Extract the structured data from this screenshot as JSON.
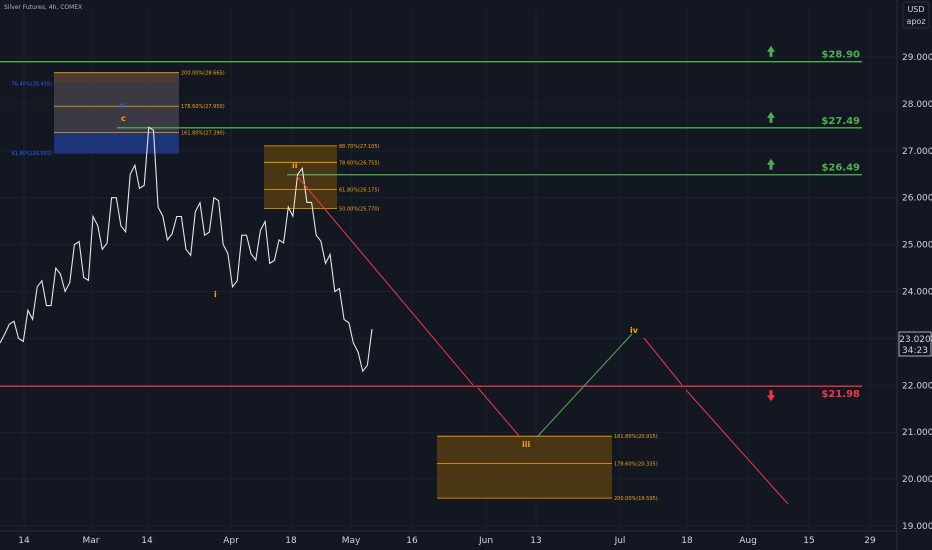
{
  "header": {
    "title": "Silver Futures, 4h, COMEX"
  },
  "currency": {
    "line1": "USD",
    "line2": "apoz"
  },
  "current": {
    "price": "23.020",
    "timer": "34:23"
  },
  "colors": {
    "bg": "#131722",
    "axis_text": "#d1d4dc",
    "green": "#4caf50",
    "red": "#f23645",
    "orange": "#f7a600",
    "blue": "#2962ff",
    "grid": "#1c2030"
  },
  "chart_data": {
    "type": "line",
    "ylim": [
      19.0,
      29.8
    ],
    "y_ticks": [
      "29.000",
      "28.000",
      "27.000",
      "26.000",
      "25.000",
      "24.000",
      "23.000",
      "22.000",
      "21.000",
      "20.000",
      "19.000"
    ],
    "x_ticks": [
      "14",
      "Mar",
      "14",
      "Apr",
      "18",
      "May",
      "16",
      "Jun",
      "13",
      "Jul",
      "18",
      "Aug",
      "15",
      "29"
    ],
    "levels": [
      {
        "value": 28.9,
        "label": "$28.90",
        "color": "#4caf50",
        "dir": "up"
      },
      {
        "value": 27.49,
        "label": "$27.49",
        "color": "#4caf50",
        "dir": "up"
      },
      {
        "value": 26.49,
        "label": "$26.49",
        "color": "#4caf50",
        "dir": "up"
      },
      {
        "value": 21.98,
        "label": "$21.98",
        "color": "#f23645",
        "dir": "down"
      }
    ],
    "fib_boxes": [
      {
        "top": 28.665,
        "bottom": 26.94,
        "lines": [
          {
            "value": 28.665,
            "label": "200.00%(28.665)"
          },
          {
            "value": 27.95,
            "label": "178.60%(27.950)"
          },
          {
            "value": 27.39,
            "label": "161.80%(27.390)"
          }
        ],
        "left_labels": [
          {
            "value": 28.435,
            "label": "76.40%(28.435)"
          },
          {
            "value": 26.955,
            "label": "61.80%(26.955)"
          }
        ]
      },
      {
        "top": 27.105,
        "bottom": 25.77,
        "lines": [
          {
            "value": 27.105,
            "label": "88.70%(27.105)"
          },
          {
            "value": 26.755,
            "label": "78.60%(26.755)"
          },
          {
            "value": 26.175,
            "label": "61.80%(26.175)"
          },
          {
            "value": 25.77,
            "label": "50.00%(25.770)"
          }
        ]
      },
      {
        "top": 20.915,
        "bottom": 19.595,
        "lines": [
          {
            "value": 20.915,
            "label": "161.80%(20.915)"
          },
          {
            "value": 20.335,
            "label": "178.60%(20.335)"
          },
          {
            "value": 19.595,
            "label": "200.00%(19.595)"
          }
        ]
      }
    ],
    "wave_labels": [
      "v",
      "c",
      "ii",
      "i",
      "iii",
      "iv"
    ],
    "price_series": [
      22.9,
      23.3,
      23.0,
      23.6,
      24.1,
      23.7,
      24.5,
      24.0,
      25.0,
      24.3,
      25.6,
      24.9,
      26.0,
      25.4,
      26.5,
      26.2,
      27.5,
      25.8,
      25.1,
      25.6,
      24.9,
      25.7,
      25.2,
      26.0,
      25.0,
      24.1,
      25.2,
      24.8,
      25.3,
      24.6,
      25.1,
      25.8,
      26.5,
      25.9,
      25.2,
      24.6,
      24.0,
      23.4,
      22.9,
      22.3,
      23.2
    ]
  }
}
